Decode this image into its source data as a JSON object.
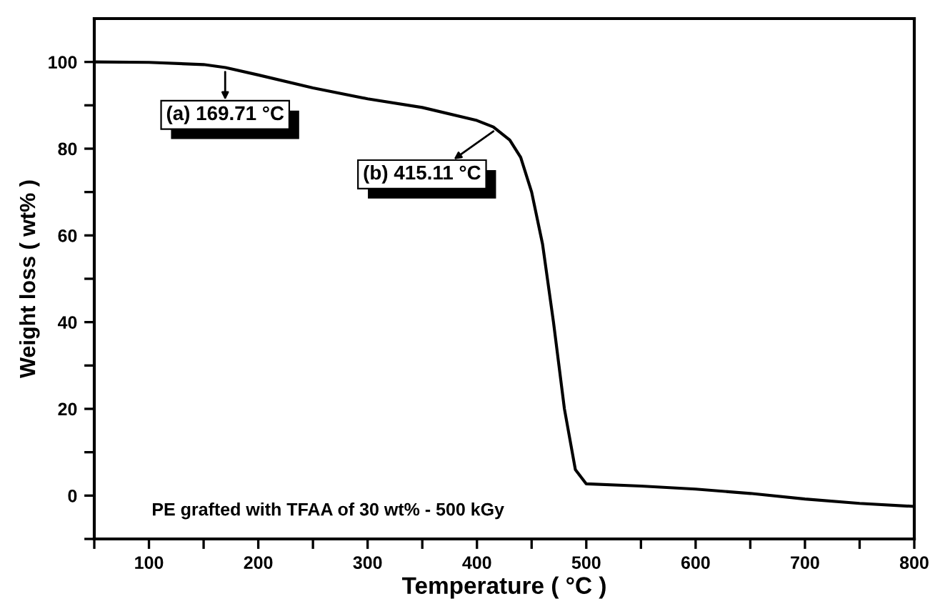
{
  "chart_data": {
    "type": "line",
    "xlabel": "Temperature ( °C )",
    "ylabel": "Weight loss ( wt% )",
    "x": [
      50,
      100,
      150,
      170,
      200,
      250,
      300,
      350,
      400,
      415,
      430,
      440,
      450,
      460,
      470,
      480,
      490,
      500,
      550,
      600,
      650,
      700,
      750,
      800
    ],
    "series": [
      {
        "color": "#000000",
        "values": [
          100,
          99.9,
          99.4,
          98.7,
          97,
          94,
          91.5,
          89.5,
          86.5,
          85,
          82,
          78,
          70,
          58,
          40,
          20,
          6,
          2.7,
          2.2,
          1.5,
          0.5,
          -0.8,
          -1.8,
          -2.5
        ]
      }
    ],
    "xlim": [
      50,
      800
    ],
    "ylim": [
      -10,
      110
    ],
    "xticks": [
      {
        "value": 50,
        "label": null
      },
      100,
      {
        "value": 150,
        "label": null
      },
      200,
      {
        "value": 250,
        "label": null
      },
      300,
      {
        "value": 350,
        "label": null
      },
      400,
      {
        "value": 450,
        "label": null
      },
      500,
      {
        "value": 550,
        "label": null
      },
      600,
      {
        "value": 650,
        "label": null
      },
      700,
      {
        "value": 750,
        "label": null
      },
      800
    ],
    "yticks": [
      {
        "value": -10,
        "label": null
      },
      0,
      {
        "value": 10,
        "label": null
      },
      20,
      {
        "value": 30,
        "label": null
      },
      40,
      {
        "value": 50,
        "label": null
      },
      60,
      {
        "value": 70,
        "label": null
      },
      80,
      {
        "value": 90,
        "label": null
      },
      100
    ],
    "annotations": [
      {
        "text": "(a) 169.71 °C",
        "x": 169.71,
        "y": 98.7
      },
      {
        "text": "(b) 415.11 °C",
        "x": 415.11,
        "y": 85
      },
      "PE grafted with TFAA of 30 wt% - 500 kGy"
    ],
    "grid": false,
    "marker": "none",
    "line_style": "solid"
  }
}
